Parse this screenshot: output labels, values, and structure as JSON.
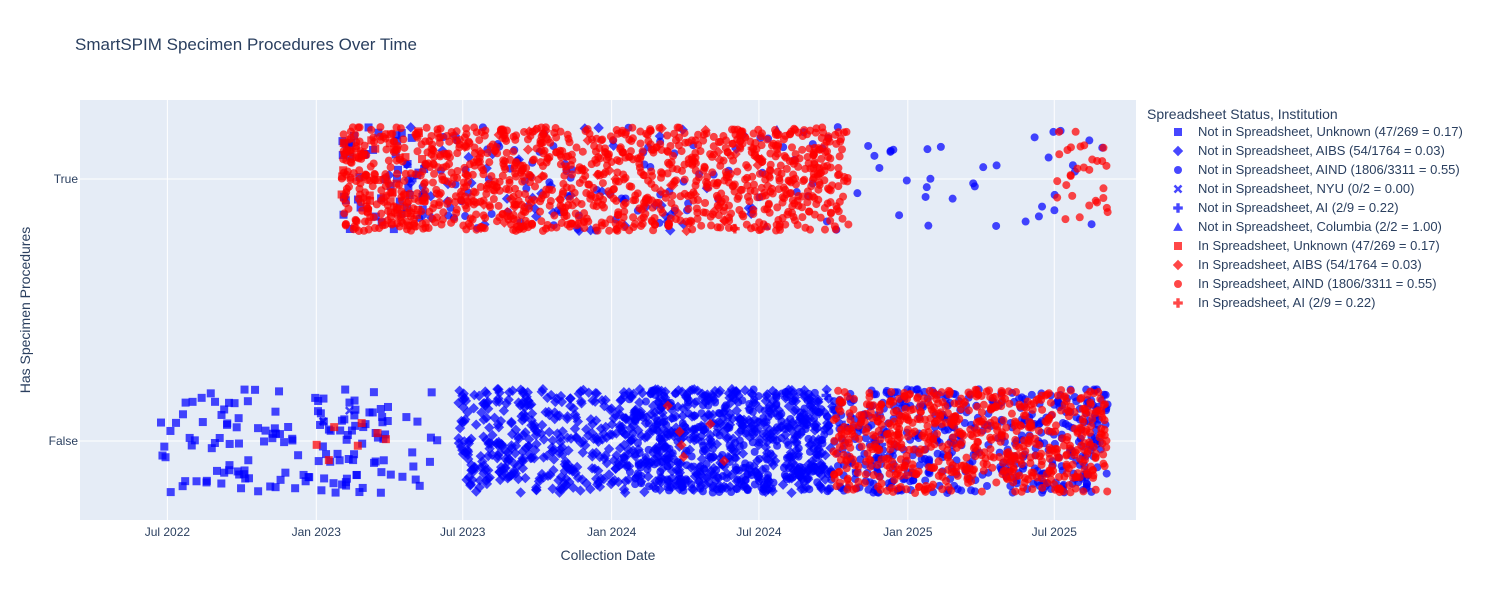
{
  "chart_data": {
    "type": "scatter",
    "title": "SmartSPIM Specimen Procedures Over Time",
    "xlabel": "Collection Date",
    "ylabel": "Has Specimen Procedures",
    "x_range": [
      "2022-03-15",
      "2025-10-10"
    ],
    "x_ticks": [
      {
        "date": "2022-07-01",
        "label": "Jul 2022"
      },
      {
        "date": "2023-01-01",
        "label": "Jan 2023"
      },
      {
        "date": "2023-07-01",
        "label": "Jul 2023"
      },
      {
        "date": "2024-01-01",
        "label": "Jan 2024"
      },
      {
        "date": "2024-07-01",
        "label": "Jul 2024"
      },
      {
        "date": "2025-01-01",
        "label": "Jan 2025"
      },
      {
        "date": "2025-07-01",
        "label": "Jul 2025"
      }
    ],
    "y_categories": [
      "False",
      "True"
    ],
    "jitter": 0.4,
    "grid": true,
    "legend": {
      "title": "Spreadsheet Status, Institution",
      "placement": "right"
    },
    "colors": {
      "not_in_spreadsheet": "#0000ff",
      "in_spreadsheet": "#ff0000",
      "plot_bg": "#e5ecf6",
      "grid": "#ffffff",
      "text": "#2a3f5f"
    },
    "series": [
      {
        "name": "Not in Spreadsheet, Unknown (47/269 = 0.17)",
        "symbol": "square",
        "color": "#0000ff",
        "clusters": [
          [
            "2022-06-20",
            "2023-06-01",
            "False",
            150
          ],
          [
            "2023-02-01",
            "2023-05-15",
            "True",
            45
          ]
        ]
      },
      {
        "name": "Not in Spreadsheet, AIBS (54/1764 = 0.03)",
        "symbol": "diamond",
        "color": "#0000ff",
        "clusters": [
          [
            "2023-06-25",
            "2024-09-30",
            "False",
            820
          ],
          [
            "2023-04-01",
            "2024-06-30",
            "True",
            55
          ]
        ]
      },
      {
        "name": "Not in Spreadsheet, AIND (1806/3311 = 0.55)",
        "symbol": "circle",
        "color": "#0000ff",
        "clusters": [
          [
            "2024-01-15",
            "2025-09-05",
            "False",
            760
          ],
          [
            "2023-05-01",
            "2025-09-05",
            "True",
            120
          ]
        ]
      },
      {
        "name": "Not in Spreadsheet, NYU (0/2 = 0.00)",
        "symbol": "x",
        "color": "#0000ff",
        "clusters": [
          [
            "2023-01-01",
            "2023-03-01",
            "False",
            2
          ]
        ]
      },
      {
        "name": "Not in Spreadsheet, AI (2/9 = 0.22)",
        "symbol": "cross",
        "color": "#0000ff",
        "clusters": [
          [
            "2024-08-01",
            "2024-12-01",
            "False",
            7
          ]
        ]
      },
      {
        "name": "Not in Spreadsheet, Columbia (2/2 = 1.00)",
        "symbol": "triangle-up",
        "color": "#0000ff",
        "clusters": [
          [
            "2024-06-01",
            "2024-08-01",
            "True",
            2
          ]
        ]
      },
      {
        "name": "In Spreadsheet, Unknown (47/269 = 0.17)",
        "symbol": "square",
        "color": "#ff0000",
        "clusters": [
          [
            "2023-02-01",
            "2023-05-15",
            "True",
            40
          ],
          [
            "2023-01-01",
            "2023-04-01",
            "False",
            7
          ]
        ]
      },
      {
        "name": "In Spreadsheet, AIBS (54/1764 = 0.03)",
        "symbol": "diamond",
        "color": "#ff0000",
        "clusters": [
          [
            "2023-06-25",
            "2024-07-15",
            "True",
            48
          ],
          [
            "2024-03-01",
            "2024-06-01",
            "False",
            6
          ]
        ]
      },
      {
        "name": "In Spreadsheet, AIND (1806/3311 = 0.55)",
        "symbol": "circle",
        "color": "#ff0000",
        "clusters": [
          [
            "2023-02-01",
            "2024-10-20",
            "True",
            1150
          ],
          [
            "2024-10-01",
            "2025-09-05",
            "False",
            650
          ],
          [
            "2025-07-01",
            "2025-09-05",
            "True",
            30
          ]
        ]
      },
      {
        "name": "In Spreadsheet, AI (2/9 = 0.22)",
        "symbol": "cross",
        "color": "#ff0000",
        "clusters": [
          [
            "2024-05-01",
            "2024-07-01",
            "True",
            2
          ]
        ]
      }
    ]
  }
}
